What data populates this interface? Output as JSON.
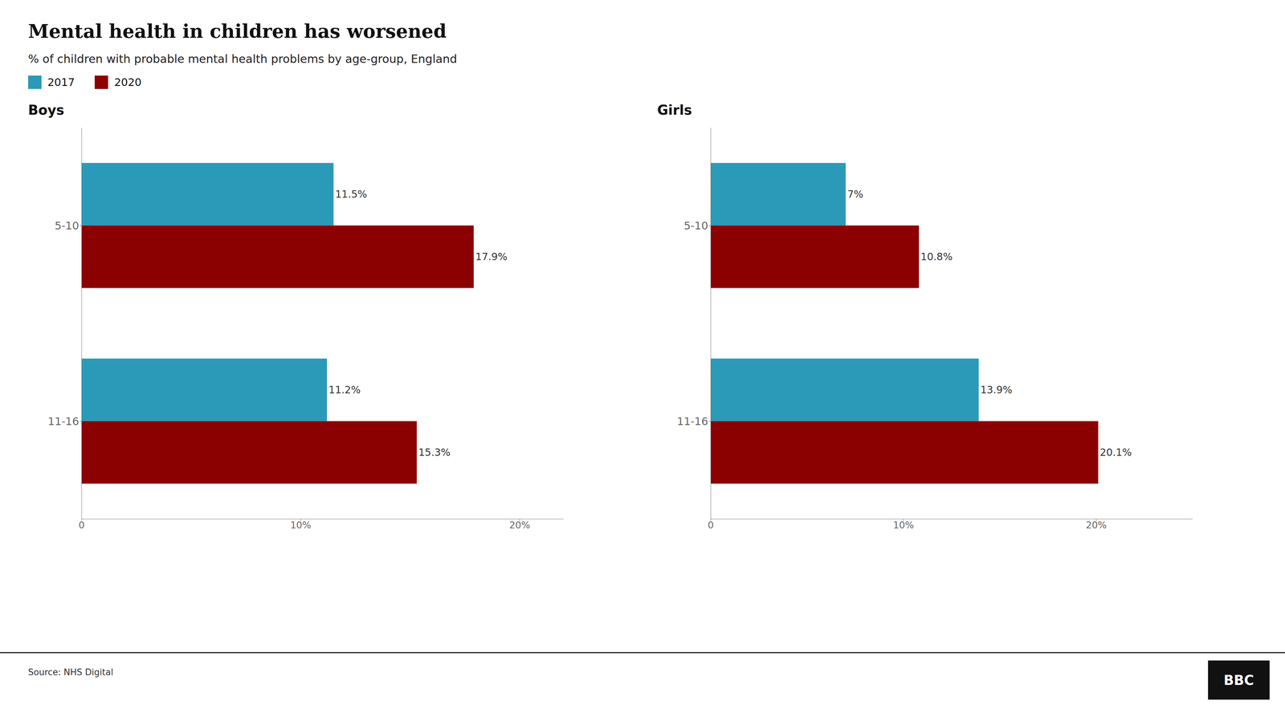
{
  "title": "Mental health in children has worsened",
  "subtitle": "% of children with probable mental health problems by age-group, England",
  "annotations": [
    "Source: NHS Digital",
    "BBC"
  ],
  "legend": "upper left",
  "chart_data": [
    {
      "type": "bar",
      "orientation": "horizontal",
      "title": "Boys",
      "categories": [
        "5-10",
        "11-16"
      ],
      "series": [
        {
          "name": "2017",
          "color": "#2b9ab8",
          "values": [
            11.5,
            11.2
          ],
          "value_labels": [
            "11.5%",
            "11.2%"
          ]
        },
        {
          "name": "2020",
          "color": "#8b0000",
          "values": [
            17.9,
            15.3
          ],
          "value_labels": [
            "17.9%",
            "15.3%"
          ]
        }
      ],
      "xlim": [
        0,
        22
      ],
      "xticks": [
        0,
        {
          "value": 10,
          "label": "10%"
        },
        {
          "value": 20,
          "label": "20%"
        }
      ],
      "grid": false,
      "data_labels": true
    },
    {
      "type": "bar",
      "orientation": "horizontal",
      "title": "Girls",
      "categories": [
        "5-10",
        "11-16"
      ],
      "series": [
        {
          "name": "2017",
          "color": "#2b9ab8",
          "values": [
            7.0,
            13.9
          ],
          "value_labels": [
            "7%",
            "13.9%"
          ]
        },
        {
          "name": "2020",
          "color": "#8b0000",
          "values": [
            10.8,
            20.1
          ],
          "value_labels": [
            "10.8%",
            "20.1%"
          ]
        }
      ],
      "xlim": [
        0,
        25
      ],
      "xticks": [
        0,
        {
          "value": 10,
          "label": "10%"
        },
        {
          "value": 20,
          "label": "20%"
        }
      ],
      "grid": false,
      "data_labels": true
    }
  ]
}
